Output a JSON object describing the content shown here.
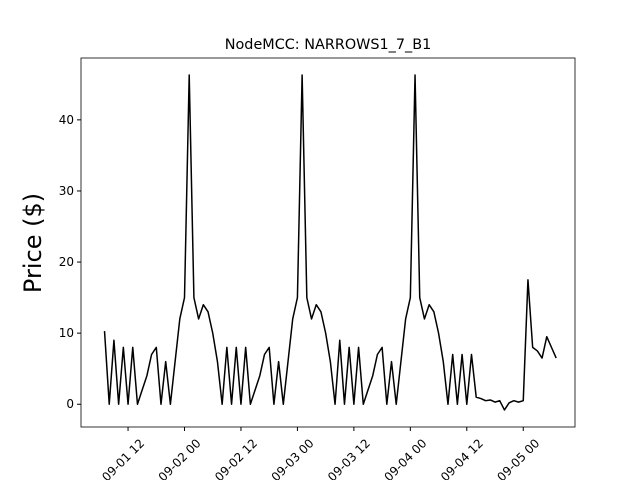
{
  "chart_data": {
    "type": "line",
    "title": "NodeMCC: NARROWS1_7_B1",
    "y_label": "Price ($)",
    "color": "#000000",
    "x": [
      "09-01 07",
      "09-01 08",
      "09-01 09",
      "09-01 10",
      "09-01 11",
      "09-01 12",
      "09-01 13",
      "09-01 14",
      "09-01 15",
      "09-01 16",
      "09-01 17",
      "09-01 18",
      "09-01 19",
      "09-01 20",
      "09-01 21",
      "09-01 22",
      "09-01 23",
      "09-02 00",
      "09-02 01",
      "09-02 02",
      "09-02 03",
      "09-02 04",
      "09-02 05",
      "09-02 06",
      "09-02 07",
      "09-02 08",
      "09-02 09",
      "09-02 10",
      "09-02 11",
      "09-02 12",
      "09-02 13",
      "09-02 14",
      "09-02 15",
      "09-02 16",
      "09-02 17",
      "09-02 18",
      "09-02 19",
      "09-02 20",
      "09-02 21",
      "09-02 22",
      "09-02 23",
      "09-03 00",
      "09-03 01",
      "09-03 02",
      "09-03 03",
      "09-03 04",
      "09-03 05",
      "09-03 06",
      "09-03 07",
      "09-03 08",
      "09-03 09",
      "09-03 10",
      "09-03 11",
      "09-03 12",
      "09-03 13",
      "09-03 14",
      "09-03 15",
      "09-03 16",
      "09-03 17",
      "09-03 18",
      "09-03 19",
      "09-03 20",
      "09-03 21",
      "09-03 22",
      "09-03 23",
      "09-04 00",
      "09-04 01",
      "09-04 02",
      "09-04 03",
      "09-04 04",
      "09-04 05",
      "09-04 06",
      "09-04 07",
      "09-04 08",
      "09-04 09",
      "09-04 10",
      "09-04 11",
      "09-04 12",
      "09-04 13",
      "09-04 14",
      "09-04 15",
      "09-04 16",
      "09-04 17",
      "09-04 18",
      "09-04 19",
      "09-04 20",
      "09-04 21",
      "09-04 22",
      "09-04 23",
      "09-05 00",
      "09-05 01",
      "09-05 02",
      "09-05 03",
      "09-05 04",
      "09-05 05",
      "09-05 06",
      "09-05 07"
    ],
    "values": [
      10.3,
      0,
      9,
      0,
      8,
      0,
      8,
      0,
      2,
      4,
      7,
      8,
      0,
      6,
      0,
      6,
      12,
      15,
      46.3,
      15,
      12,
      14,
      13,
      10,
      6,
      0,
      8,
      0,
      8,
      0,
      8,
      0,
      2,
      4,
      7,
      8,
      0,
      6,
      0,
      6,
      12,
      15,
      46.3,
      15,
      12,
      14,
      13,
      10,
      6,
      0,
      9,
      0,
      8,
      0,
      8,
      0,
      2,
      4,
      7,
      8,
      0,
      6,
      0,
      6,
      12,
      15,
      46.3,
      15,
      12,
      14,
      13,
      10,
      6,
      0,
      7,
      0,
      7,
      0,
      7,
      1,
      0.8,
      0.5,
      0.6,
      0.3,
      0.5,
      -0.8,
      0.2,
      0.5,
      0.3,
      0.5,
      17.5,
      8,
      7.5,
      6.5,
      9.5,
      8,
      6.5
    ],
    "xlim": [
      "09-01 02",
      "09-05 11"
    ],
    "xticks": [
      "09-01 12",
      "09-02 00",
      "09-02 12",
      "09-03 00",
      "09-03 12",
      "09-04 00",
      "09-04 12",
      "09-05 00"
    ],
    "ylim": [
      -3.2,
      48.7
    ],
    "yticks": [
      0,
      10,
      20,
      30,
      40
    ]
  }
}
